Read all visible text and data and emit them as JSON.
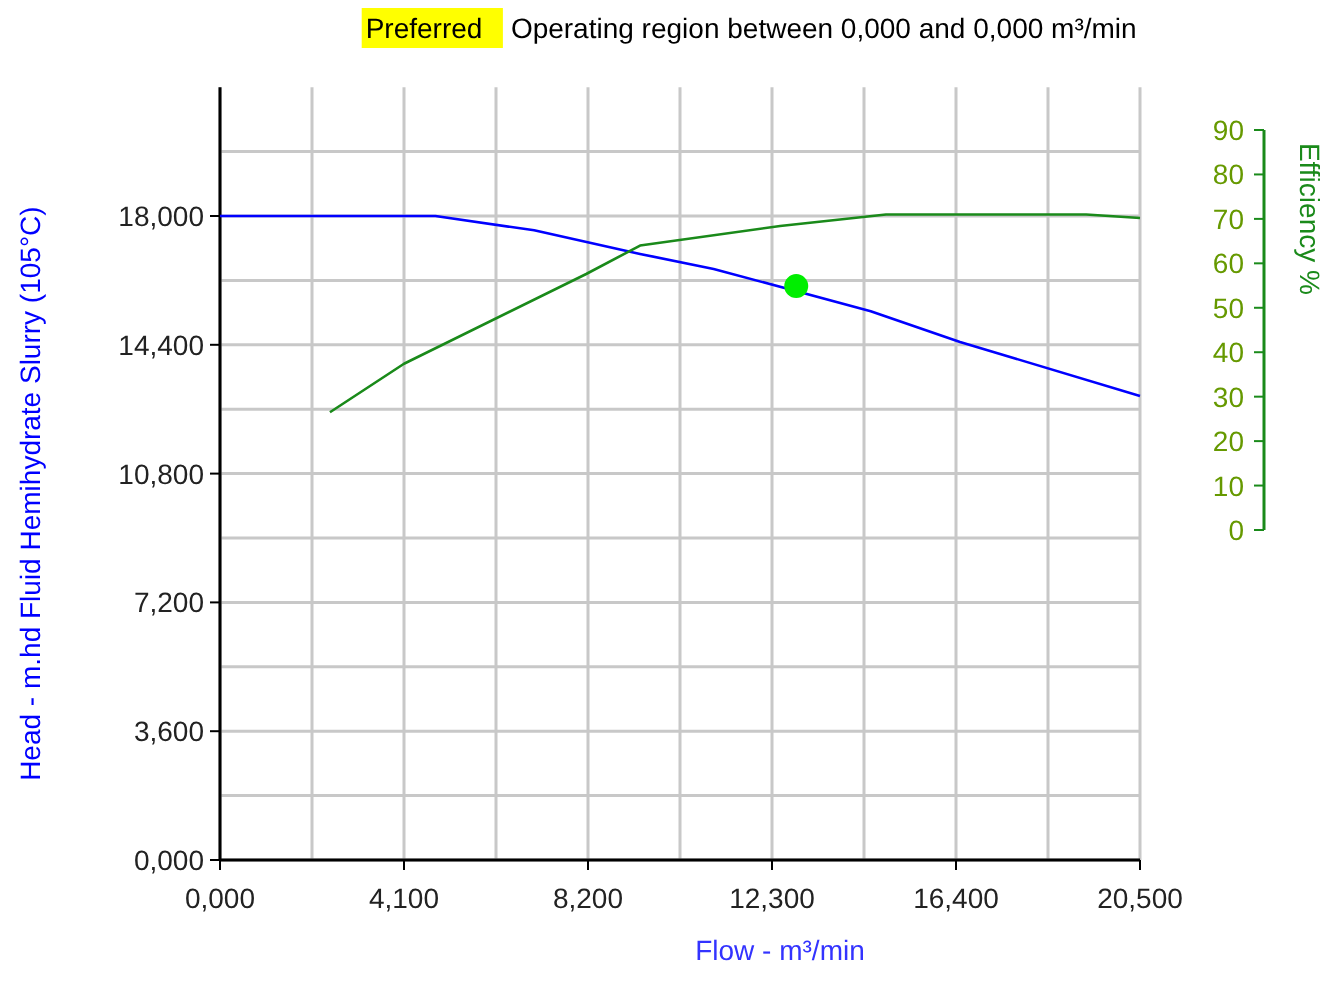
{
  "chart_data": {
    "type": "line",
    "title": "Operating region between 0,000 and 0,000 m³/min",
    "annotations": [
      "Preferred"
    ],
    "xlabel": "Flow - m³/min",
    "ylabel": "Head - m.hd Fluid Hemihydrate Slurry (105°C)",
    "y2label": "Efficiency %",
    "xlim": [
      0,
      20.5
    ],
    "xticks": [
      {
        "value": 0,
        "label": "0,000"
      },
      {
        "value": 2.05,
        "label": null
      },
      {
        "value": 4.1,
        "label": "4,100"
      },
      {
        "value": 6.15,
        "label": null
      },
      {
        "value": 8.2,
        "label": "8,200"
      },
      {
        "value": 10.25,
        "label": null
      },
      {
        "value": 12.3,
        "label": "12,300"
      },
      {
        "value": 14.35,
        "label": null
      },
      {
        "value": 16.4,
        "label": "16,400"
      },
      {
        "value": 18.45,
        "label": null
      },
      {
        "value": 20.5,
        "label": "20,500"
      }
    ],
    "ylim": [
      0,
      21.6
    ],
    "yticks": [
      {
        "value": 0,
        "label": "0,000"
      },
      {
        "value": 1.8,
        "label": null
      },
      {
        "value": 3.6,
        "label": "3,600"
      },
      {
        "value": 5.4,
        "label": null
      },
      {
        "value": 7.2,
        "label": "7,200"
      },
      {
        "value": 9,
        "label": null
      },
      {
        "value": 10.8,
        "label": "10,800"
      },
      {
        "value": 12.6,
        "label": null
      },
      {
        "value": 14.4,
        "label": "14,400"
      },
      {
        "value": 16.2,
        "label": null
      },
      {
        "value": 18,
        "label": "18,000"
      },
      {
        "value": 19.8,
        "label": null
      }
    ],
    "y2lim": [
      0,
      90
    ],
    "y2ticks": [
      0,
      10,
      20,
      30,
      40,
      50,
      60,
      70,
      80,
      90
    ],
    "grid": true,
    "line_style": "solid",
    "series": [
      {
        "color": "#0000ff",
        "x": [
          0,
          4.8,
          7.0,
          9.36,
          11.0,
          14.5,
          16.49,
          20.5
        ],
        "values": [
          18.0,
          18.0,
          17.6,
          16.94,
          16.52,
          15.34,
          14.48,
          12.97
        ]
      },
      {
        "axis": "y2",
        "color": "#1a8a1a",
        "x": [
          2.45,
          4.1,
          8.16,
          9.36,
          12.48,
          14.84,
          19.3,
          20.5
        ],
        "values": [
          26.5,
          37.4,
          57.6,
          64,
          68.4,
          71,
          71,
          70.2
        ]
      },
      {
        "type": "scatter",
        "color": "#00ee00",
        "x": [
          12.84
        ],
        "values": [
          16.04
        ]
      }
    ]
  }
}
